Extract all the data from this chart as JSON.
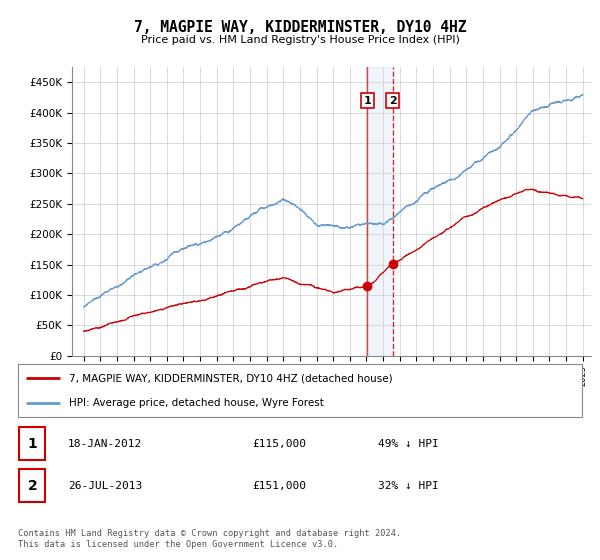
{
  "title": "7, MAGPIE WAY, KIDDERMINSTER, DY10 4HZ",
  "subtitle": "Price paid vs. HM Land Registry's House Price Index (HPI)",
  "legend_entry1": "7, MAGPIE WAY, KIDDERMINSTER, DY10 4HZ (detached house)",
  "legend_entry2": "HPI: Average price, detached house, Wyre Forest",
  "transaction1_date": "18-JAN-2012",
  "transaction1_price": "£115,000",
  "transaction1_hpi": "49% ↓ HPI",
  "transaction2_date": "26-JUL-2013",
  "transaction2_price": "£151,000",
  "transaction2_hpi": "32% ↓ HPI",
  "footer": "Contains HM Land Registry data © Crown copyright and database right 2024.\nThis data is licensed under the Open Government Licence v3.0.",
  "ylim": [
    0,
    475000
  ],
  "yticks": [
    0,
    50000,
    100000,
    150000,
    200000,
    250000,
    300000,
    350000,
    400000,
    450000
  ],
  "hpi_color": "#6699cc",
  "price_color": "#cc0000",
  "transaction1_x": 2012.05,
  "transaction2_x": 2013.58,
  "background_color": "#ffffff",
  "grid_color": "#cccccc"
}
